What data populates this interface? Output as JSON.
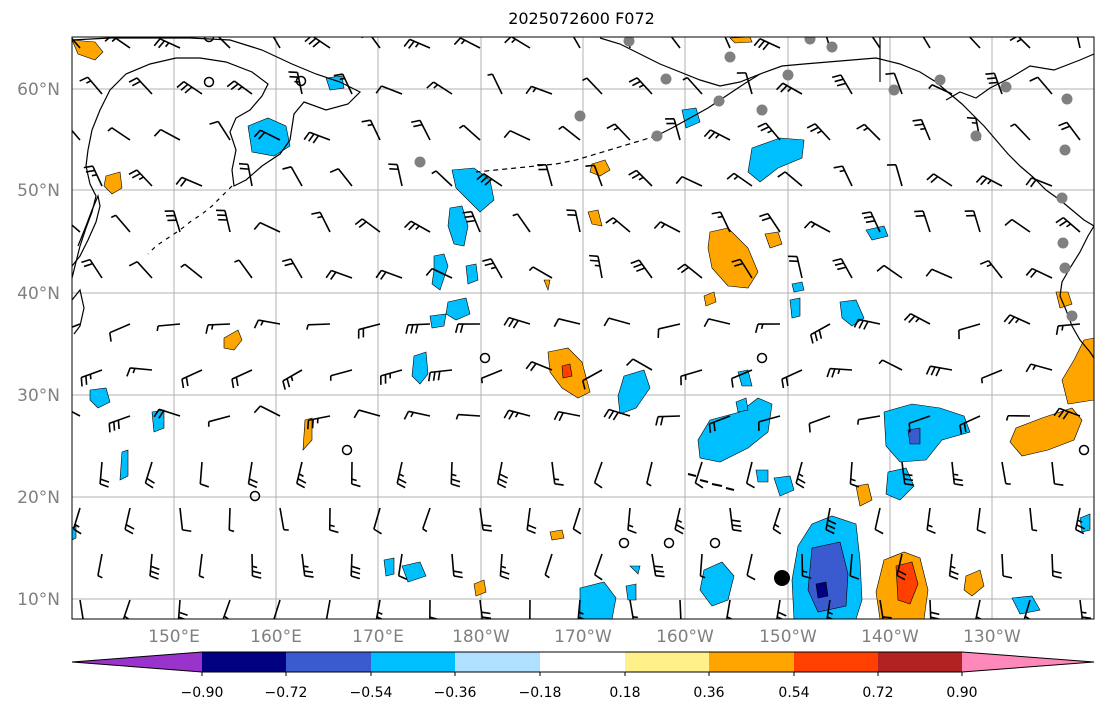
{
  "title": "2025072600 F072",
  "lat_labels": [
    "60°N",
    "50°N",
    "40°N",
    "30°N",
    "20°N",
    "10°N"
  ],
  "lon_labels": [
    "150°E",
    "160°E",
    "170°E",
    "180°W",
    "170°W",
    "160°W",
    "150°W",
    "140°W",
    "130°W"
  ],
  "colorbar": {
    "tick_labels": [
      "−0.90",
      "−0.72",
      "−0.54",
      "−0.36",
      "−0.18",
      "0.18",
      "0.36",
      "0.54",
      "0.72",
      "0.90"
    ],
    "bins": [
      {
        "color": "#9933cc",
        "shape": "under-arrow"
      },
      {
        "color": "#000080"
      },
      {
        "color": "#3a5ad0"
      },
      {
        "color": "#00bfff"
      },
      {
        "color": "#b0e0ff"
      },
      {
        "color": "#ffffff"
      },
      {
        "color": "#fff08a"
      },
      {
        "color": "#ffa500"
      },
      {
        "color": "#ff4000"
      },
      {
        "color": "#b22222"
      },
      {
        "color": "#ff88bb",
        "shape": "over-arrow"
      }
    ]
  },
  "colors": {
    "land_outline": "#000000",
    "grid": "#b0b0b0",
    "axis_label": "#808080",
    "stations": "#808080",
    "storm_center": "#000000"
  },
  "map_extent": {
    "lon_min": 140,
    "lon_max": 240,
    "lat_min": 8,
    "lat_max": 65
  }
}
